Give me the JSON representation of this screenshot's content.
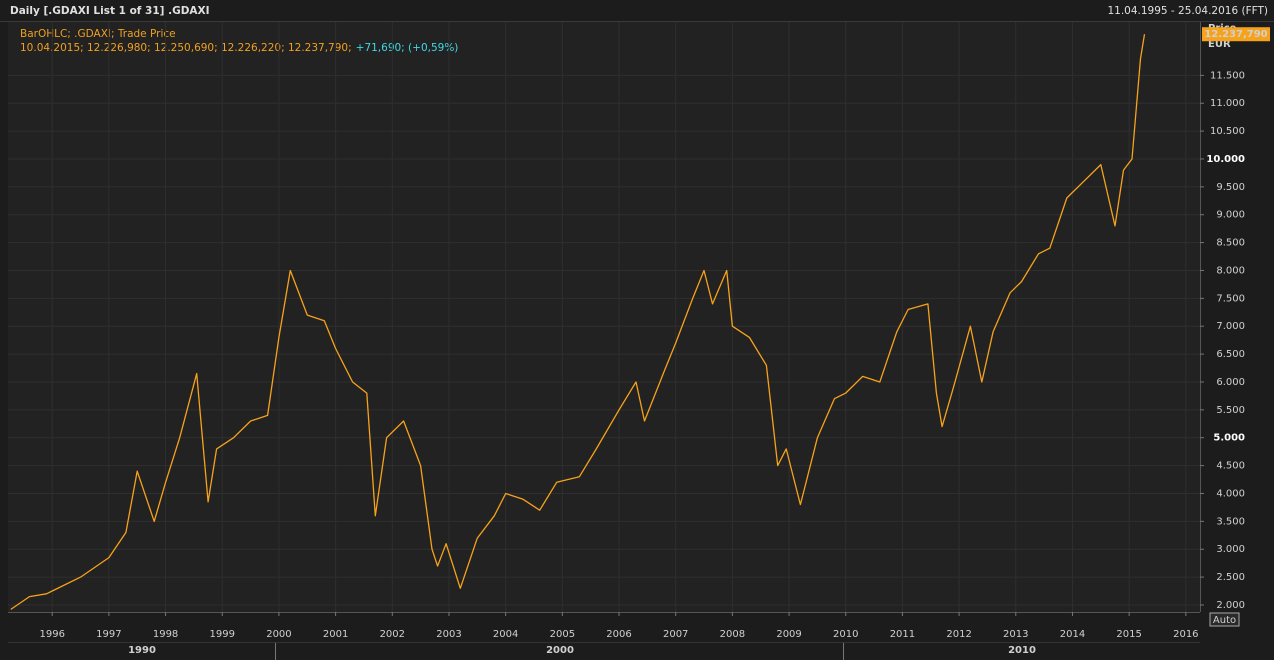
{
  "header": {
    "title": "Daily [.GDAXI List 1 of 31] .GDAXI",
    "range": "11.04.1995 - 25.04.2016 (FFT)"
  },
  "chart_data": {
    "type": "line",
    "legend_lines": [
      "BarOHLC; .GDAXI; Trade Price",
      "10.04.2015; 12.226,980; 12.250,690; 12.226,220; 12.237,790;",
      "+71,690; (+0,59%)"
    ],
    "y_axis_title": "Price",
    "y_axis_unit": "EUR",
    "last_value": 12237.79,
    "last_value_label": "12.237,790",
    "auto_button": "Auto",
    "decade_labels": [
      "1990",
      "2000",
      "2010"
    ],
    "xlim": [
      1995.22,
      2016.25
    ],
    "xticks": [
      {
        "value": 1996,
        "label": "1996"
      },
      {
        "value": 1997,
        "label": "1997"
      },
      {
        "value": 1998,
        "label": "1998"
      },
      {
        "value": 1999,
        "label": "1999"
      },
      {
        "value": 2000,
        "label": "2000"
      },
      {
        "value": 2001,
        "label": "2001"
      },
      {
        "value": 2002,
        "label": "2002"
      },
      {
        "value": 2003,
        "label": "2003"
      },
      {
        "value": 2004,
        "label": "2004"
      },
      {
        "value": 2005,
        "label": "2005"
      },
      {
        "value": 2006,
        "label": "2006"
      },
      {
        "value": 2007,
        "label": "2007"
      },
      {
        "value": 2008,
        "label": "2008"
      },
      {
        "value": 2009,
        "label": "2009"
      },
      {
        "value": 2010,
        "label": "2010"
      },
      {
        "value": 2011,
        "label": "2011"
      },
      {
        "value": 2012,
        "label": "2012"
      },
      {
        "value": 2013,
        "label": "2013"
      },
      {
        "value": 2014,
        "label": "2014"
      },
      {
        "value": 2015,
        "label": "2015"
      },
      {
        "value": 2016,
        "label": "2016"
      }
    ],
    "ylim": [
      1874,
      12457
    ],
    "yticks": [
      {
        "value": 2000,
        "label": "2.000"
      },
      {
        "value": 2500,
        "label": "2.500"
      },
      {
        "value": 3000,
        "label": "3.000"
      },
      {
        "value": 3500,
        "label": "3.500"
      },
      {
        "value": 4000,
        "label": "4.000"
      },
      {
        "value": 4500,
        "label": "4.500"
      },
      {
        "value": 5000,
        "label": "5.000"
      },
      {
        "value": 5500,
        "label": "5.500"
      },
      {
        "value": 6000,
        "label": "6.000"
      },
      {
        "value": 6500,
        "label": "6.500"
      },
      {
        "value": 7000,
        "label": "7.000"
      },
      {
        "value": 7500,
        "label": "7.500"
      },
      {
        "value": 8000,
        "label": "8.000"
      },
      {
        "value": 8500,
        "label": "8.500"
      },
      {
        "value": 9000,
        "label": "9.000"
      },
      {
        "value": 9500,
        "label": "9.500"
      },
      {
        "value": 10000,
        "label": "10.000"
      },
      {
        "value": 10500,
        "label": "10.500"
      },
      {
        "value": 11000,
        "label": "11.000"
      },
      {
        "value": 11500,
        "label": "11.500"
      }
    ],
    "bold_yticks": [
      5000,
      10000
    ],
    "grid": true,
    "x": [
      1995.27,
      1995.6,
      1995.9,
      1996.0,
      1996.5,
      1997.0,
      1997.3,
      1997.5,
      1997.8,
      1998.0,
      1998.25,
      1998.55,
      1998.75,
      1998.9,
      1999.2,
      1999.5,
      1999.8,
      2000.0,
      2000.2,
      2000.5,
      2000.8,
      2001.0,
      2001.3,
      2001.55,
      2001.7,
      2001.9,
      2002.2,
      2002.5,
      2002.7,
      2002.8,
      2002.95,
      2003.2,
      2003.5,
      2003.8,
      2004.0,
      2004.3,
      2004.6,
      2004.9,
      2005.3,
      2005.6,
      2006.0,
      2006.3,
      2006.45,
      2006.8,
      2007.0,
      2007.3,
      2007.5,
      2007.65,
      2007.9,
      2008.0,
      2008.3,
      2008.6,
      2008.8,
      2008.95,
      2009.2,
      2009.5,
      2009.8,
      2010.0,
      2010.3,
      2010.6,
      2010.9,
      2011.1,
      2011.45,
      2011.6,
      2011.7,
      2011.9,
      2012.2,
      2012.4,
      2012.6,
      2012.9,
      2013.1,
      2013.4,
      2013.6,
      2013.9,
      2014.2,
      2014.5,
      2014.75,
      2014.9,
      2015.05,
      2015.2,
      2015.27
    ],
    "series": [
      {
        "name": ".GDAXI",
        "color": "#f7a21b",
        "values": [
          1920,
          2150,
          2200,
          2250,
          2500,
          2850,
          3300,
          4400,
          3500,
          4200,
          5000,
          6150,
          3850,
          4800,
          5000,
          5300,
          5400,
          6800,
          8000,
          7200,
          7100,
          6600,
          6000,
          5800,
          3600,
          5000,
          5300,
          4500,
          3000,
          2700,
          3100,
          2300,
          3200,
          3600,
          4000,
          3900,
          3700,
          4200,
          4300,
          4800,
          5500,
          6000,
          5300,
          6200,
          6700,
          7500,
          8000,
          7400,
          8000,
          7000,
          6800,
          6300,
          4500,
          4800,
          3800,
          5000,
          5700,
          5800,
          6100,
          6000,
          6900,
          7300,
          7400,
          5800,
          5200,
          5900,
          7000,
          6000,
          6900,
          7600,
          7800,
          8300,
          8400,
          9300,
          9600,
          9900,
          8800,
          9800,
          10000,
          11800,
          12237.79
        ]
      }
    ]
  }
}
